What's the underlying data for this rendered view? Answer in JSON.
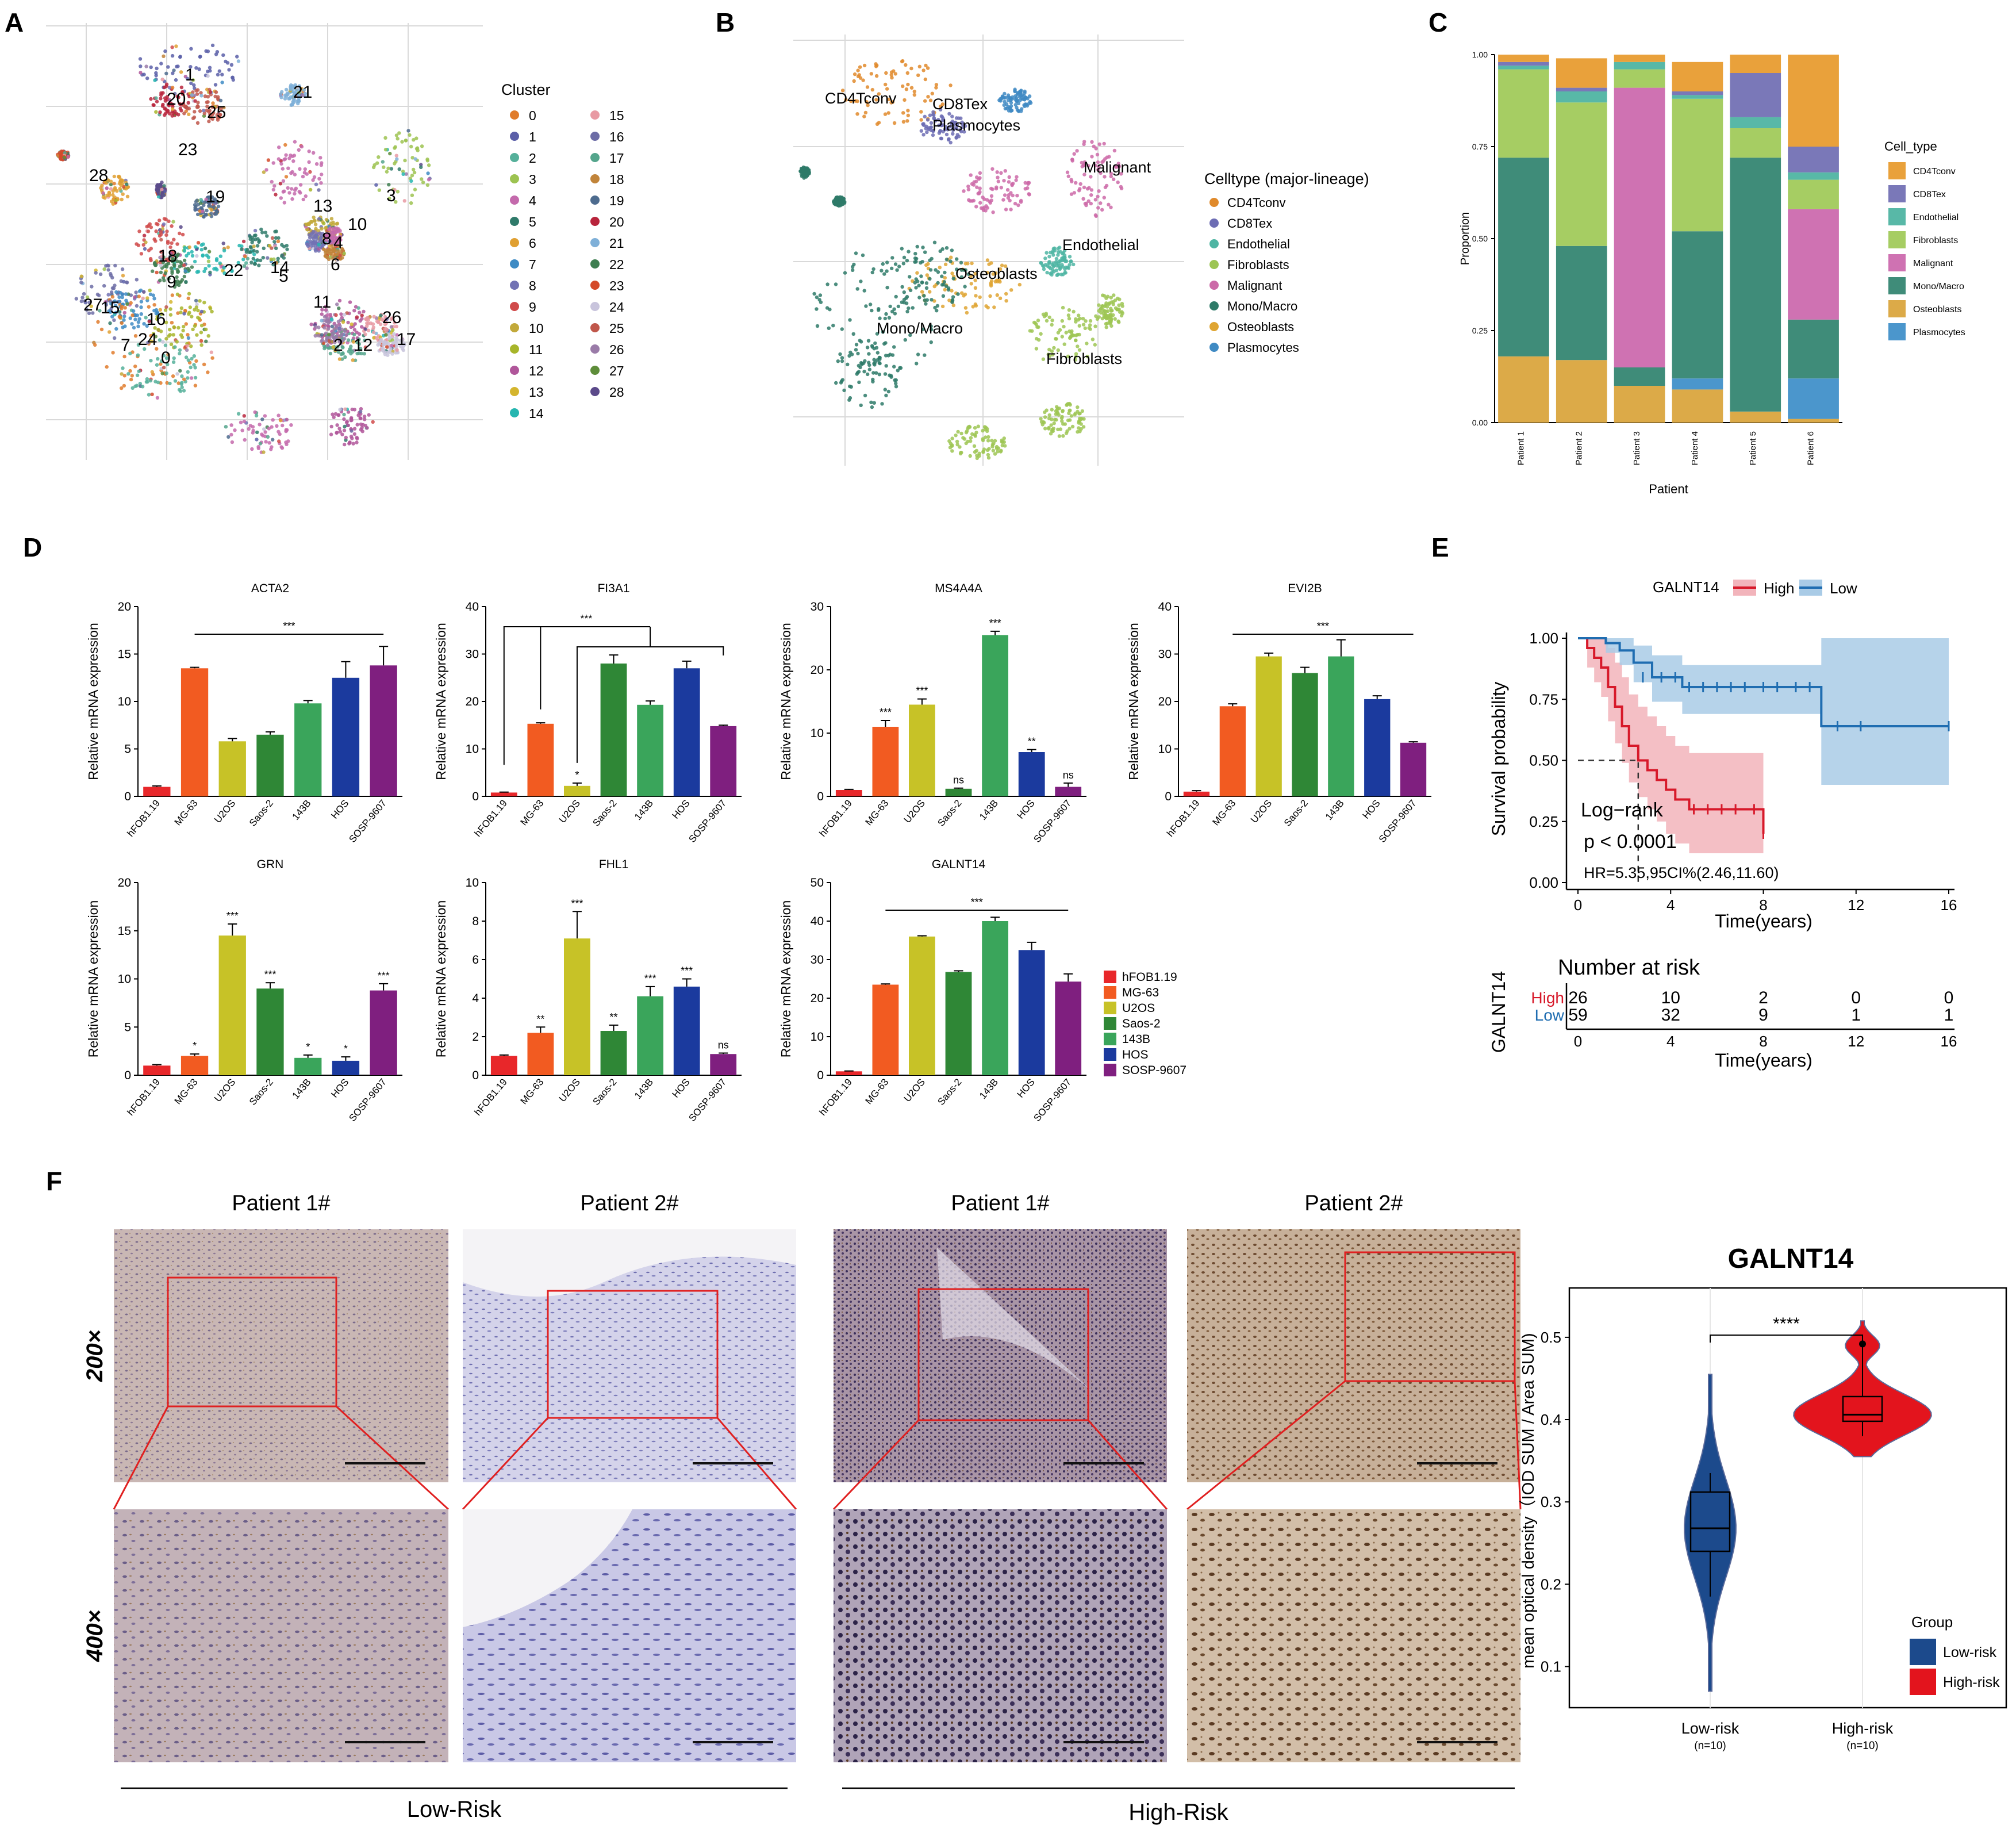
{
  "panels": {
    "A": "A",
    "B": "B",
    "C": "C",
    "D": "D",
    "E": "E",
    "F": "F"
  },
  "colors": {
    "sig_line": "#222222",
    "high": "#d7192a",
    "low": "#1f6db1",
    "high_ci": "#f2b4bb",
    "low_ci": "#a9cbe6"
  },
  "umapA": {
    "legend_title": "Cluster",
    "clusters": [
      "0",
      "1",
      "2",
      "3",
      "4",
      "5",
      "6",
      "7",
      "8",
      "9",
      "10",
      "11",
      "12",
      "13",
      "14",
      "15",
      "16",
      "17",
      "18",
      "19",
      "20",
      "21",
      "22",
      "23",
      "24",
      "25",
      "26",
      "27",
      "28"
    ],
    "colors": [
      "#e07b2b",
      "#5b5fa8",
      "#55b09a",
      "#9dc351",
      "#c46aac",
      "#2f7a6a",
      "#e0a032",
      "#3e8bc4",
      "#7272b4",
      "#d04a4a",
      "#c2a93a",
      "#a7b52a",
      "#b0569a",
      "#d4b52e",
      "#26b6b0",
      "#e89aa3",
      "#6d6da6",
      "#55a58c",
      "#c1843a",
      "#4d6b8e",
      "#b8243c",
      "#7fb0d8",
      "#3e7e50",
      "#d44a2a",
      "#c8c4dc",
      "#c0574b",
      "#9a7ba8",
      "#5e8d3a",
      "#5b4a8a"
    ],
    "labels": [
      {
        "t": "1"
      },
      {
        "t": "20"
      },
      {
        "t": "25"
      },
      {
        "t": "21"
      },
      {
        "t": "28"
      },
      {
        "t": "23"
      },
      {
        "t": "19"
      },
      {
        "t": "13"
      },
      {
        "t": "3"
      },
      {
        "t": "10"
      },
      {
        "t": "8"
      },
      {
        "t": "4"
      },
      {
        "t": "6"
      },
      {
        "t": "18"
      },
      {
        "t": "9"
      },
      {
        "t": "22"
      },
      {
        "t": "14"
      },
      {
        "t": "5"
      },
      {
        "t": "27"
      },
      {
        "t": "16"
      },
      {
        "t": "7"
      },
      {
        "t": "0"
      },
      {
        "t": "11"
      },
      {
        "t": "2"
      },
      {
        "t": "12"
      },
      {
        "t": "26"
      },
      {
        "t": "17"
      },
      {
        "t": "15"
      },
      {
        "t": "24"
      }
    ]
  },
  "umapB": {
    "legend_title": "Celltype (major-lineage)",
    "types": [
      {
        "name": "CD4Tconv",
        "color": "#e08a2c"
      },
      {
        "name": "CD8Tex",
        "color": "#6d6db4"
      },
      {
        "name": "Endothelial",
        "color": "#4fb5a3"
      },
      {
        "name": "Fibroblasts",
        "color": "#9dc554"
      },
      {
        "name": "Malignant",
        "color": "#cc6aa8"
      },
      {
        "name": "Mono/Macro",
        "color": "#2e7a68"
      },
      {
        "name": "Osteoblasts",
        "color": "#dfa532"
      },
      {
        "name": "Plasmocytes",
        "color": "#3f8ac3"
      }
    ],
    "labels": [
      "CD4Tconv",
      "CD8Tex",
      "Plasmocytes",
      "Malignant",
      "Endothelial",
      "Osteoblasts",
      "Mono/Macro",
      "Fibroblasts"
    ]
  },
  "chart_data": [
    {
      "panel": "C",
      "type": "bar",
      "stacked": true,
      "categories": [
        "Patient 1",
        "Patient 2",
        "Patient 3",
        "Patient 4",
        "Patient 5",
        "Patient 6"
      ],
      "xlabel": "Patient",
      "ylabel": "Proportion",
      "ylim": [
        0,
        1
      ],
      "yticks": [
        "0.00",
        "0.25",
        "0.50",
        "0.75",
        "1.00"
      ],
      "legend_title": "Cell_type",
      "stack_order": [
        "Osteoblasts",
        "Plasmocytes",
        "Mono/Macro",
        "Malignant",
        "Fibroblasts",
        "Endothelial",
        "CD8Tex",
        "CD4Tconv"
      ],
      "series": [
        {
          "name": "CD4Tconv",
          "color": "#e9a13b",
          "values": [
            0.02,
            0.08,
            0.02,
            0.08,
            0.05,
            0.25
          ]
        },
        {
          "name": "CD8Tex",
          "color": "#7a78b8",
          "values": [
            0.01,
            0.01,
            0.0,
            0.01,
            0.12,
            0.07
          ]
        },
        {
          "name": "Endothelial",
          "color": "#58b8a7",
          "values": [
            0.01,
            0.03,
            0.02,
            0.01,
            0.03,
            0.02
          ]
        },
        {
          "name": "Fibroblasts",
          "color": "#a6cd63",
          "values": [
            0.24,
            0.39,
            0.05,
            0.36,
            0.08,
            0.08
          ]
        },
        {
          "name": "Malignant",
          "color": "#cf72b2",
          "values": [
            0.0,
            0.0,
            0.76,
            0.0,
            0.0,
            0.3
          ]
        },
        {
          "name": "Mono/Macro",
          "color": "#3f8c79",
          "values": [
            0.54,
            0.31,
            0.05,
            0.4,
            0.69,
            0.16
          ]
        },
        {
          "name": "Osteoblasts",
          "color": "#dcaa48",
          "values": [
            0.18,
            0.17,
            0.1,
            0.09,
            0.03,
            0.01
          ]
        },
        {
          "name": "Plasmocytes",
          "color": "#4b96cc",
          "values": [
            0.0,
            0.0,
            0.0,
            0.03,
            0.0,
            0.11
          ]
        }
      ]
    },
    {
      "panel": "D",
      "title": "ACTA2",
      "type": "bar",
      "ylabel": "Relative mRNA  expression",
      "categories": [
        "hFOB1.19",
        "MG-63",
        "U2OS",
        "Saos-2",
        "143B",
        "HOS",
        "SOSP-9607"
      ],
      "values": [
        1.0,
        13.5,
        5.8,
        6.5,
        9.8,
        12.5,
        13.8
      ],
      "errors": [
        0.1,
        0.1,
        0.3,
        0.3,
        0.3,
        1.7,
        2.0
      ],
      "ylim": [
        0,
        20
      ],
      "yticks": [
        "0",
        "5",
        "10",
        "15",
        "20"
      ],
      "bracket": {
        "type": "line",
        "from": 1,
        "to": 6,
        "label": "***"
      },
      "stars": []
    },
    {
      "panel": "D",
      "title": "FI3A1",
      "type": "bar",
      "ylabel": "Relative mRNA  expression",
      "categories": [
        "hFOB1.19",
        "MG-63",
        "U2OS",
        "Saos-2",
        "143B",
        "HOS",
        "SOSP-9607"
      ],
      "values": [
        0.8,
        15.3,
        2.2,
        28.0,
        19.3,
        27.0,
        14.8
      ],
      "errors": [
        0.1,
        0.2,
        0.6,
        1.8,
        0.8,
        1.5,
        0.2
      ],
      "ylim": [
        0,
        40
      ],
      "yticks": [
        "0",
        "10",
        "20",
        "30",
        "40"
      ],
      "bracket": {
        "type": "tree",
        "label": "***"
      },
      "stars": [
        "",
        "",
        "*",
        "",
        "",
        "",
        ""
      ]
    },
    {
      "panel": "D",
      "title": "MS4A4A",
      "type": "bar",
      "ylabel": "Relative mRNA  expression",
      "categories": [
        "hFOB1.19",
        "MG-63",
        "U2OS",
        "Saos-2",
        "143B",
        "HOS",
        "SOSP-9607"
      ],
      "values": [
        1.0,
        11.0,
        14.5,
        1.2,
        25.5,
        7.0,
        1.5
      ],
      "errors": [
        0.1,
        1.0,
        0.9,
        0.1,
        0.6,
        0.4,
        0.6
      ],
      "ylim": [
        0,
        30
      ],
      "yticks": [
        "0",
        "10",
        "20",
        "30"
      ],
      "bracket": null,
      "stars": [
        "",
        "***",
        "***",
        "ns",
        "***",
        "**",
        "ns"
      ]
    },
    {
      "panel": "D",
      "title": "EVI2B",
      "type": "bar",
      "ylabel": "Relative mRNA  expression",
      "categories": [
        "hFOB1.19",
        "MG-63",
        "U2OS",
        "Saos-2",
        "143B",
        "HOS",
        "SOSP-9607"
      ],
      "values": [
        1.0,
        19.0,
        29.5,
        26.0,
        29.5,
        20.5,
        11.3
      ],
      "errors": [
        0.2,
        0.5,
        0.7,
        1.2,
        3.5,
        0.7,
        0.2
      ],
      "ylim": [
        0,
        40
      ],
      "yticks": [
        "0",
        "10",
        "20",
        "30",
        "40"
      ],
      "bracket": {
        "type": "line",
        "from": 1,
        "to": 6,
        "label": "***"
      },
      "stars": []
    },
    {
      "panel": "D",
      "title": "GRN",
      "type": "bar",
      "ylabel": "Relative mRNA  expression",
      "categories": [
        "hFOB1.19",
        "MG-63",
        "U2OS",
        "Saos-2",
        "143B",
        "HOS",
        "SOSP-9607"
      ],
      "values": [
        1.0,
        2.0,
        14.5,
        9.0,
        1.8,
        1.5,
        8.8
      ],
      "errors": [
        0.1,
        0.2,
        1.2,
        0.6,
        0.3,
        0.4,
        0.7
      ],
      "ylim": [
        0,
        20
      ],
      "yticks": [
        "0",
        "5",
        "10",
        "15",
        "20"
      ],
      "bracket": null,
      "stars": [
        "",
        "*",
        "***",
        "***",
        "*",
        "*",
        "***"
      ]
    },
    {
      "panel": "D",
      "title": "FHL1",
      "type": "bar",
      "ylabel": "Relative mRNA  expression",
      "categories": [
        "hFOB1.19",
        "MG-63",
        "U2OS",
        "Saos-2",
        "143B",
        "HOS",
        "SOSP-9607"
      ],
      "values": [
        1.0,
        2.2,
        7.1,
        2.3,
        4.1,
        4.6,
        1.1
      ],
      "errors": [
        0.05,
        0.3,
        1.4,
        0.3,
        0.5,
        0.4,
        0.05
      ],
      "ylim": [
        0,
        10
      ],
      "yticks": [
        "0",
        "2",
        "4",
        "6",
        "8",
        "10"
      ],
      "bracket": null,
      "stars": [
        "",
        "**",
        "***",
        "**",
        "***",
        "***",
        "ns"
      ]
    },
    {
      "panel": "D",
      "title": "GALNT14",
      "type": "bar",
      "ylabel": "Relative mRNA  expression",
      "categories": [
        "hFOB1.19",
        "MG-63",
        "U2OS",
        "Saos-2",
        "143B",
        "HOS",
        "SOSP-9607"
      ],
      "values": [
        1.0,
        23.5,
        36.0,
        26.8,
        40.0,
        32.5,
        24.3
      ],
      "errors": [
        0.1,
        0.2,
        0.2,
        0.3,
        1.0,
        2.0,
        2.0
      ],
      "ylim": [
        0,
        50
      ],
      "yticks": [
        "0",
        "10",
        "20",
        "30",
        "40",
        "50"
      ],
      "bracket": {
        "type": "line",
        "from": 1,
        "to": 6,
        "label": "***"
      },
      "stars": []
    },
    {
      "panel": "E",
      "type": "line",
      "subtype": "kaplan-meier",
      "legend_title": "GALNT14",
      "xlabel": "Time(years)",
      "ylabel": "Survival probability",
      "xlim": [
        0,
        16
      ],
      "ylim": [
        0,
        1
      ],
      "xticks": [
        "0",
        "4",
        "8",
        "12",
        "16"
      ],
      "yticks": [
        "0.00",
        "0.25",
        "0.50",
        "0.75",
        "1.00"
      ],
      "annotations": {
        "logrank": "Log−rank",
        "p": "p < 0.0001",
        "hr": "HR=5.35,95CI%(2.46,11.60)"
      },
      "series": [
        {
          "name": "High",
          "color": "#d7192a",
          "x": [
            0,
            0.4,
            0.7,
            1.0,
            1.3,
            1.6,
            1.9,
            2.2,
            2.6,
            3.0,
            3.4,
            3.8,
            4.2,
            4.8,
            8.0
          ],
          "y": [
            1.0,
            0.96,
            0.92,
            0.88,
            0.8,
            0.72,
            0.64,
            0.56,
            0.5,
            0.46,
            0.42,
            0.38,
            0.34,
            0.3,
            0.2
          ],
          "lower": [
            1.0,
            0.88,
            0.82,
            0.76,
            0.66,
            0.57,
            0.49,
            0.41,
            0.35,
            0.3,
            0.25,
            0.2,
            0.16,
            0.12,
            0.05
          ],
          "upper": [
            1.0,
            1.0,
            1.0,
            1.0,
            0.96,
            0.9,
            0.84,
            0.77,
            0.72,
            0.68,
            0.64,
            0.6,
            0.56,
            0.53,
            0.48
          ],
          "censor_x": [
            5.0,
            5.6,
            6.2,
            6.8,
            7.6,
            8.0
          ],
          "censor_y": [
            0.3,
            0.3,
            0.3,
            0.3,
            0.3,
            0.2
          ]
        },
        {
          "name": "Low",
          "color": "#1f6db1",
          "x": [
            0,
            1.2,
            1.8,
            2.4,
            3.2,
            4.5,
            10.5,
            16
          ],
          "y": [
            1.0,
            0.98,
            0.95,
            0.9,
            0.84,
            0.8,
            0.64,
            0.64
          ],
          "lower": [
            1.0,
            0.94,
            0.89,
            0.82,
            0.74,
            0.69,
            0.4,
            0.4
          ],
          "upper": [
            1.0,
            1.0,
            1.0,
            0.97,
            0.93,
            0.89,
            1.0,
            1.0
          ],
          "censor_x": [
            2.8,
            3.6,
            4.2,
            4.8,
            5.4,
            6.0,
            6.6,
            7.2,
            8.0,
            8.6,
            9.4,
            10.0,
            11.2,
            12.2,
            16.0
          ],
          "censor_y": [
            0.84,
            0.84,
            0.84,
            0.8,
            0.8,
            0.8,
            0.8,
            0.8,
            0.8,
            0.8,
            0.8,
            0.8,
            0.64,
            0.64,
            0.64
          ]
        }
      ],
      "risk_table": {
        "title": "Number at risk",
        "ylabel": "GALNT14",
        "times": [
          "0",
          "4",
          "8",
          "12",
          "16"
        ],
        "rows": [
          {
            "name": "High",
            "color": "#d7192a",
            "counts": [
              "26",
              "10",
              "2",
              "0",
              "0"
            ]
          },
          {
            "name": "Low",
            "color": "#1f6db1",
            "counts": [
              "59",
              "32",
              "9",
              "1",
              "1"
            ]
          }
        ]
      }
    },
    {
      "panel": "F",
      "type": "violin",
      "title": "GALNT14",
      "ylabel": "mean optical density（IOD SUM / Area SUM)",
      "ylim": [
        0.05,
        0.56
      ],
      "yticks": [
        "0.1",
        "0.2",
        "0.3",
        "0.4",
        "0.5"
      ],
      "categories": [
        "Low-risk",
        "High-risk"
      ],
      "ns": [
        "(n=10)",
        "(n=10)"
      ],
      "significance": "****",
      "legend_title": "Group",
      "series": [
        {
          "name": "Low-risk",
          "color": "#1c4a8c",
          "min": 0.07,
          "max": 0.455,
          "q1": 0.24,
          "median": 0.268,
          "q3": 0.312,
          "whisker_low": 0.185,
          "whisker_high": 0.335
        },
        {
          "name": "High-risk",
          "color": "#e3141d",
          "min": 0.355,
          "max": 0.52,
          "q1": 0.398,
          "median": 0.406,
          "q3": 0.428,
          "whisker_low": 0.38,
          "whisker_high": 0.5,
          "outlier": 0.492
        }
      ]
    }
  ],
  "histology": {
    "columns": [
      "Patient 1#",
      "Patient 2#",
      "Patient 1#",
      "Patient 2#"
    ],
    "rows": [
      "200×",
      "400×"
    ],
    "groups": [
      "Low-Risk",
      "High-Risk"
    ]
  }
}
